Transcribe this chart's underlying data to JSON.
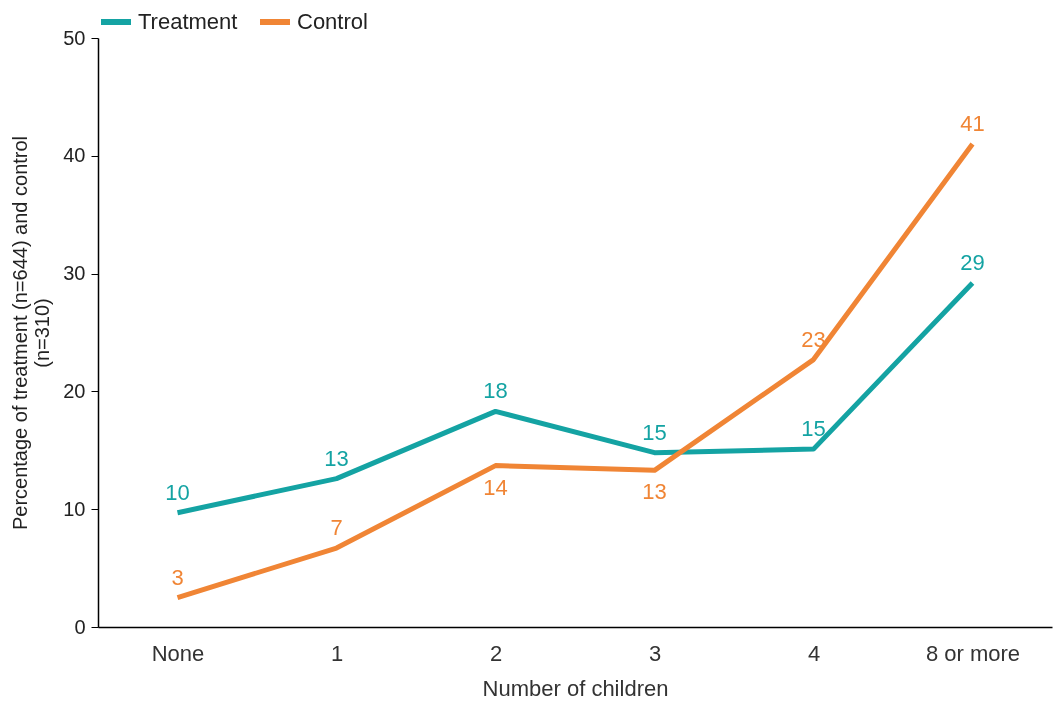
{
  "chart_data": {
    "type": "line",
    "xlabel": "Number of children",
    "ylabel": "Percentage of treatment (n=644) and control (n=310)",
    "categories": [
      "None",
      "1",
      "2",
      "3",
      "4",
      "8 or more"
    ],
    "series": [
      {
        "name": "Treatment",
        "color": "#14a3a3",
        "values": [
          9.7,
          12.6,
          18.3,
          14.8,
          15.1,
          29.2
        ],
        "value_labels": [
          "10",
          "13",
          "18",
          "15",
          "15",
          "29"
        ]
      },
      {
        "name": "Control",
        "color": "#f08535",
        "values": [
          2.5,
          6.7,
          13.7,
          13.3,
          22.7,
          41.0
        ],
        "value_labels": [
          "3",
          "7",
          "14",
          "13",
          "23",
          "41"
        ]
      }
    ],
    "ylim": [
      0,
      50
    ],
    "yticks": [
      0,
      10,
      20,
      30,
      40,
      50
    ],
    "grid": false,
    "legend": "top",
    "marker": "none",
    "line_style": "solid"
  }
}
